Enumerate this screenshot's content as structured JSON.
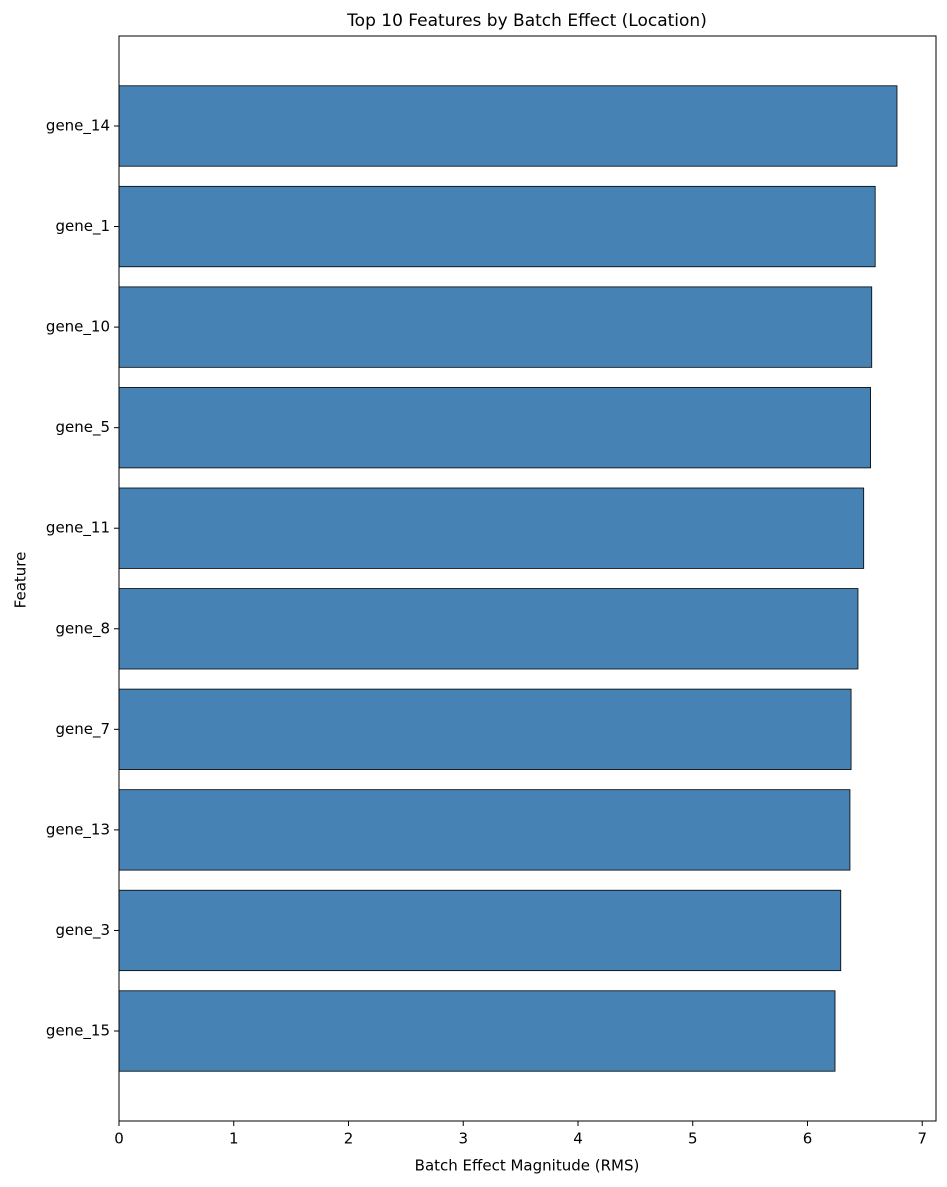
{
  "chart_data": {
    "type": "barh",
    "title": "Top 10 Features by Batch Effect (Location)",
    "x_label": "Batch Effect Magnitude (RMS)",
    "y_label": "Feature",
    "categories": [
      "gene_14",
      "gene_1",
      "gene_10",
      "gene_5",
      "gene_11",
      "gene_8",
      "gene_7",
      "gene_13",
      "gene_3",
      "gene_15"
    ],
    "values": [
      6.78,
      6.59,
      6.56,
      6.55,
      6.49,
      6.44,
      6.38,
      6.37,
      6.29,
      6.24
    ],
    "color": "#4682b4",
    "edge_color": "#000000",
    "xlim": [
      0,
      7.12
    ],
    "xticks": [
      0,
      1,
      2,
      3,
      4,
      5,
      6,
      7
    ],
    "grid": false
  }
}
